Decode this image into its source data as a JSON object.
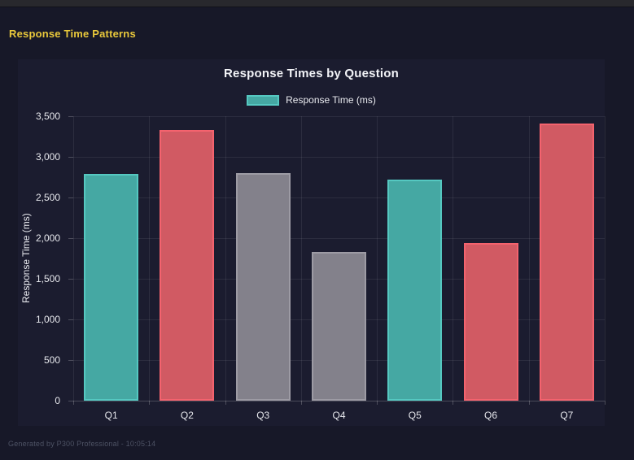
{
  "page": {
    "title": "Response Time Patterns"
  },
  "footer": {
    "text": "Generated by P300 Professional - 10:05:14"
  },
  "colors": {
    "page_background": "#171828",
    "top_bar": "#28282d",
    "panel_background": "#1b1c2f",
    "accent_yellow": "#e9c83b",
    "teal": "#45a8a3",
    "red": "#d15a63",
    "gray": "#83818b"
  },
  "chart_data": {
    "type": "bar",
    "title": "Response Times by Question",
    "legend_label": "Response Time (ms)",
    "legend_position": "top",
    "legend_swatch_fill": "#45a8a3",
    "legend_swatch_border": "#55c8c1",
    "xlabel": "",
    "ylabel": "Response Time (ms)",
    "categories": [
      "Q1",
      "Q2",
      "Q3",
      "Q4",
      "Q5",
      "Q6",
      "Q7"
    ],
    "values": [
      2790,
      3330,
      2800,
      1830,
      2720,
      1940,
      3410
    ],
    "ylim": [
      0,
      3500
    ],
    "ytick_step": 500,
    "ytick_labels": [
      "0",
      "500",
      "1,000",
      "1,500",
      "2,000",
      "2,500",
      "3,000",
      "3,500"
    ],
    "grid": true,
    "bar_colors": [
      {
        "fill": "#45a8a3",
        "border": "#55c8c1"
      },
      {
        "fill": "#d15a63",
        "border": "#f4636e"
      },
      {
        "fill": "#83818b",
        "border": "#9d9ba4"
      },
      {
        "fill": "#83818b",
        "border": "#9d9ba4"
      },
      {
        "fill": "#45a8a3",
        "border": "#55c8c1"
      },
      {
        "fill": "#d15a63",
        "border": "#f4636e"
      },
      {
        "fill": "#d15a63",
        "border": "#f4636e"
      }
    ]
  }
}
